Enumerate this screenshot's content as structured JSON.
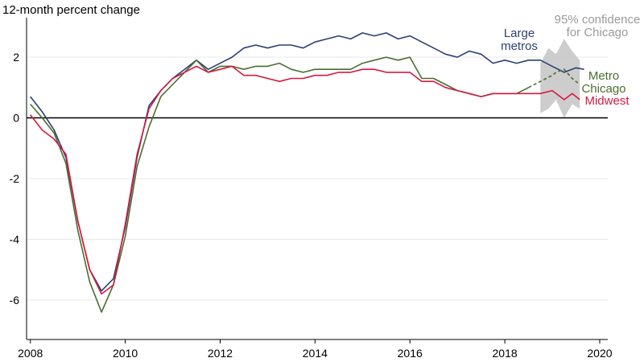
{
  "chart_data": {
    "type": "line",
    "title": "",
    "ylabel": "12-month percent change",
    "xlabel": "",
    "xlim": [
      2007.92,
      2020.17
    ],
    "ylim": [
      -7.3,
      3.3
    ],
    "yticks": [
      -6,
      -4,
      -2,
      0,
      2
    ],
    "xticks": [
      2008,
      2010,
      2012,
      2014,
      2016,
      2018,
      2020
    ],
    "grid": true,
    "zero_line": true,
    "confidence_band": {
      "label_lines": [
        "95% confidence",
        "for Chicago"
      ],
      "color": "#c4c4c4",
      "x": [
        2018.75,
        2018.92,
        2019.08,
        2019.25,
        2019.42,
        2019.58
      ],
      "lower": [
        0.15,
        0.3,
        0.6,
        0.0,
        0.45,
        0.3
      ],
      "upper": [
        1.8,
        2.3,
        2.1,
        2.6,
        2.2,
        1.9
      ]
    },
    "series": [
      {
        "name": "Large metros",
        "label_lines": [
          "Large",
          "metros"
        ],
        "color": "#2c4073",
        "x": [
          2008,
          2008.25,
          2008.5,
          2008.75,
          2009,
          2009.25,
          2009.5,
          2009.75,
          2010,
          2010.25,
          2010.5,
          2010.75,
          2011,
          2011.25,
          2011.5,
          2011.75,
          2012,
          2012.25,
          2012.5,
          2012.75,
          2013,
          2013.25,
          2013.5,
          2013.75,
          2014,
          2014.25,
          2014.5,
          2014.75,
          2015,
          2015.25,
          2015.5,
          2015.75,
          2016,
          2016.25,
          2016.5,
          2016.75,
          2017,
          2017.25,
          2017.5,
          2017.75,
          2018,
          2018.25,
          2018.5,
          2018.75,
          2019,
          2019.25,
          2019.5,
          2019.67
        ],
        "y": [
          0.7,
          0.2,
          -0.4,
          -1.3,
          -3.4,
          -5.0,
          -5.7,
          -5.3,
          -3.6,
          -1.3,
          0.4,
          0.9,
          1.3,
          1.6,
          1.9,
          1.6,
          1.8,
          2.0,
          2.3,
          2.4,
          2.3,
          2.4,
          2.4,
          2.3,
          2.5,
          2.6,
          2.7,
          2.6,
          2.8,
          2.7,
          2.8,
          2.6,
          2.7,
          2.5,
          2.3,
          2.1,
          2.0,
          2.2,
          2.1,
          1.8,
          1.9,
          1.8,
          1.9,
          1.9,
          1.7,
          1.5,
          1.65,
          1.6
        ]
      },
      {
        "name": "Metro Chicago",
        "label_lines": [
          "Metro",
          "Chicago"
        ],
        "color": "#4b6e2f",
        "dashed_from_x": 2018.75,
        "x": [
          2008,
          2008.25,
          2008.5,
          2008.75,
          2009,
          2009.25,
          2009.5,
          2009.75,
          2010,
          2010.25,
          2010.5,
          2010.75,
          2011,
          2011.25,
          2011.5,
          2011.75,
          2012,
          2012.25,
          2012.5,
          2012.75,
          2013,
          2013.25,
          2013.5,
          2013.75,
          2014,
          2014.25,
          2014.5,
          2014.75,
          2015,
          2015.25,
          2015.5,
          2015.75,
          2016,
          2016.25,
          2016.5,
          2016.75,
          2017,
          2017.25,
          2017.5,
          2017.75,
          2018,
          2018.25,
          2018.5,
          2018.75,
          2019,
          2019.08,
          2019.25,
          2019.42,
          2019.58
        ],
        "y": [
          0.45,
          0.0,
          -0.5,
          -1.5,
          -3.7,
          -5.4,
          -6.4,
          -5.5,
          -3.9,
          -1.6,
          -0.3,
          0.7,
          1.1,
          1.5,
          1.9,
          1.5,
          1.7,
          1.7,
          1.6,
          1.7,
          1.7,
          1.8,
          1.6,
          1.5,
          1.6,
          1.6,
          1.6,
          1.6,
          1.8,
          1.9,
          2.0,
          1.9,
          2.0,
          1.3,
          1.3,
          1.1,
          0.9,
          0.8,
          0.7,
          0.8,
          0.8,
          0.8,
          1.0,
          1.2,
          1.4,
          1.5,
          1.6,
          1.3,
          1.1
        ]
      },
      {
        "name": "Midwest",
        "label_lines": [
          "Midwest"
        ],
        "color": "#d7193f",
        "x": [
          2008,
          2008.25,
          2008.5,
          2008.75,
          2009,
          2009.25,
          2009.5,
          2009.75,
          2010,
          2010.25,
          2010.5,
          2010.75,
          2011,
          2011.25,
          2011.5,
          2011.75,
          2012,
          2012.25,
          2012.5,
          2012.75,
          2013,
          2013.25,
          2013.5,
          2013.75,
          2014,
          2014.25,
          2014.5,
          2014.75,
          2015,
          2015.25,
          2015.5,
          2015.75,
          2016,
          2016.25,
          2016.5,
          2016.75,
          2017,
          2017.25,
          2017.5,
          2017.75,
          2018,
          2018.25,
          2018.5,
          2018.75,
          2019,
          2019.25,
          2019.42,
          2019.58
        ],
        "y": [
          0.1,
          -0.4,
          -0.7,
          -1.2,
          -3.4,
          -5.0,
          -5.8,
          -5.5,
          -3.5,
          -1.2,
          0.3,
          0.9,
          1.3,
          1.5,
          1.7,
          1.5,
          1.6,
          1.7,
          1.4,
          1.4,
          1.3,
          1.2,
          1.3,
          1.3,
          1.4,
          1.4,
          1.5,
          1.5,
          1.6,
          1.6,
          1.5,
          1.5,
          1.5,
          1.2,
          1.2,
          1.0,
          0.9,
          0.8,
          0.7,
          0.8,
          0.8,
          0.8,
          0.8,
          0.8,
          0.9,
          0.6,
          0.8,
          0.6
        ]
      }
    ]
  }
}
